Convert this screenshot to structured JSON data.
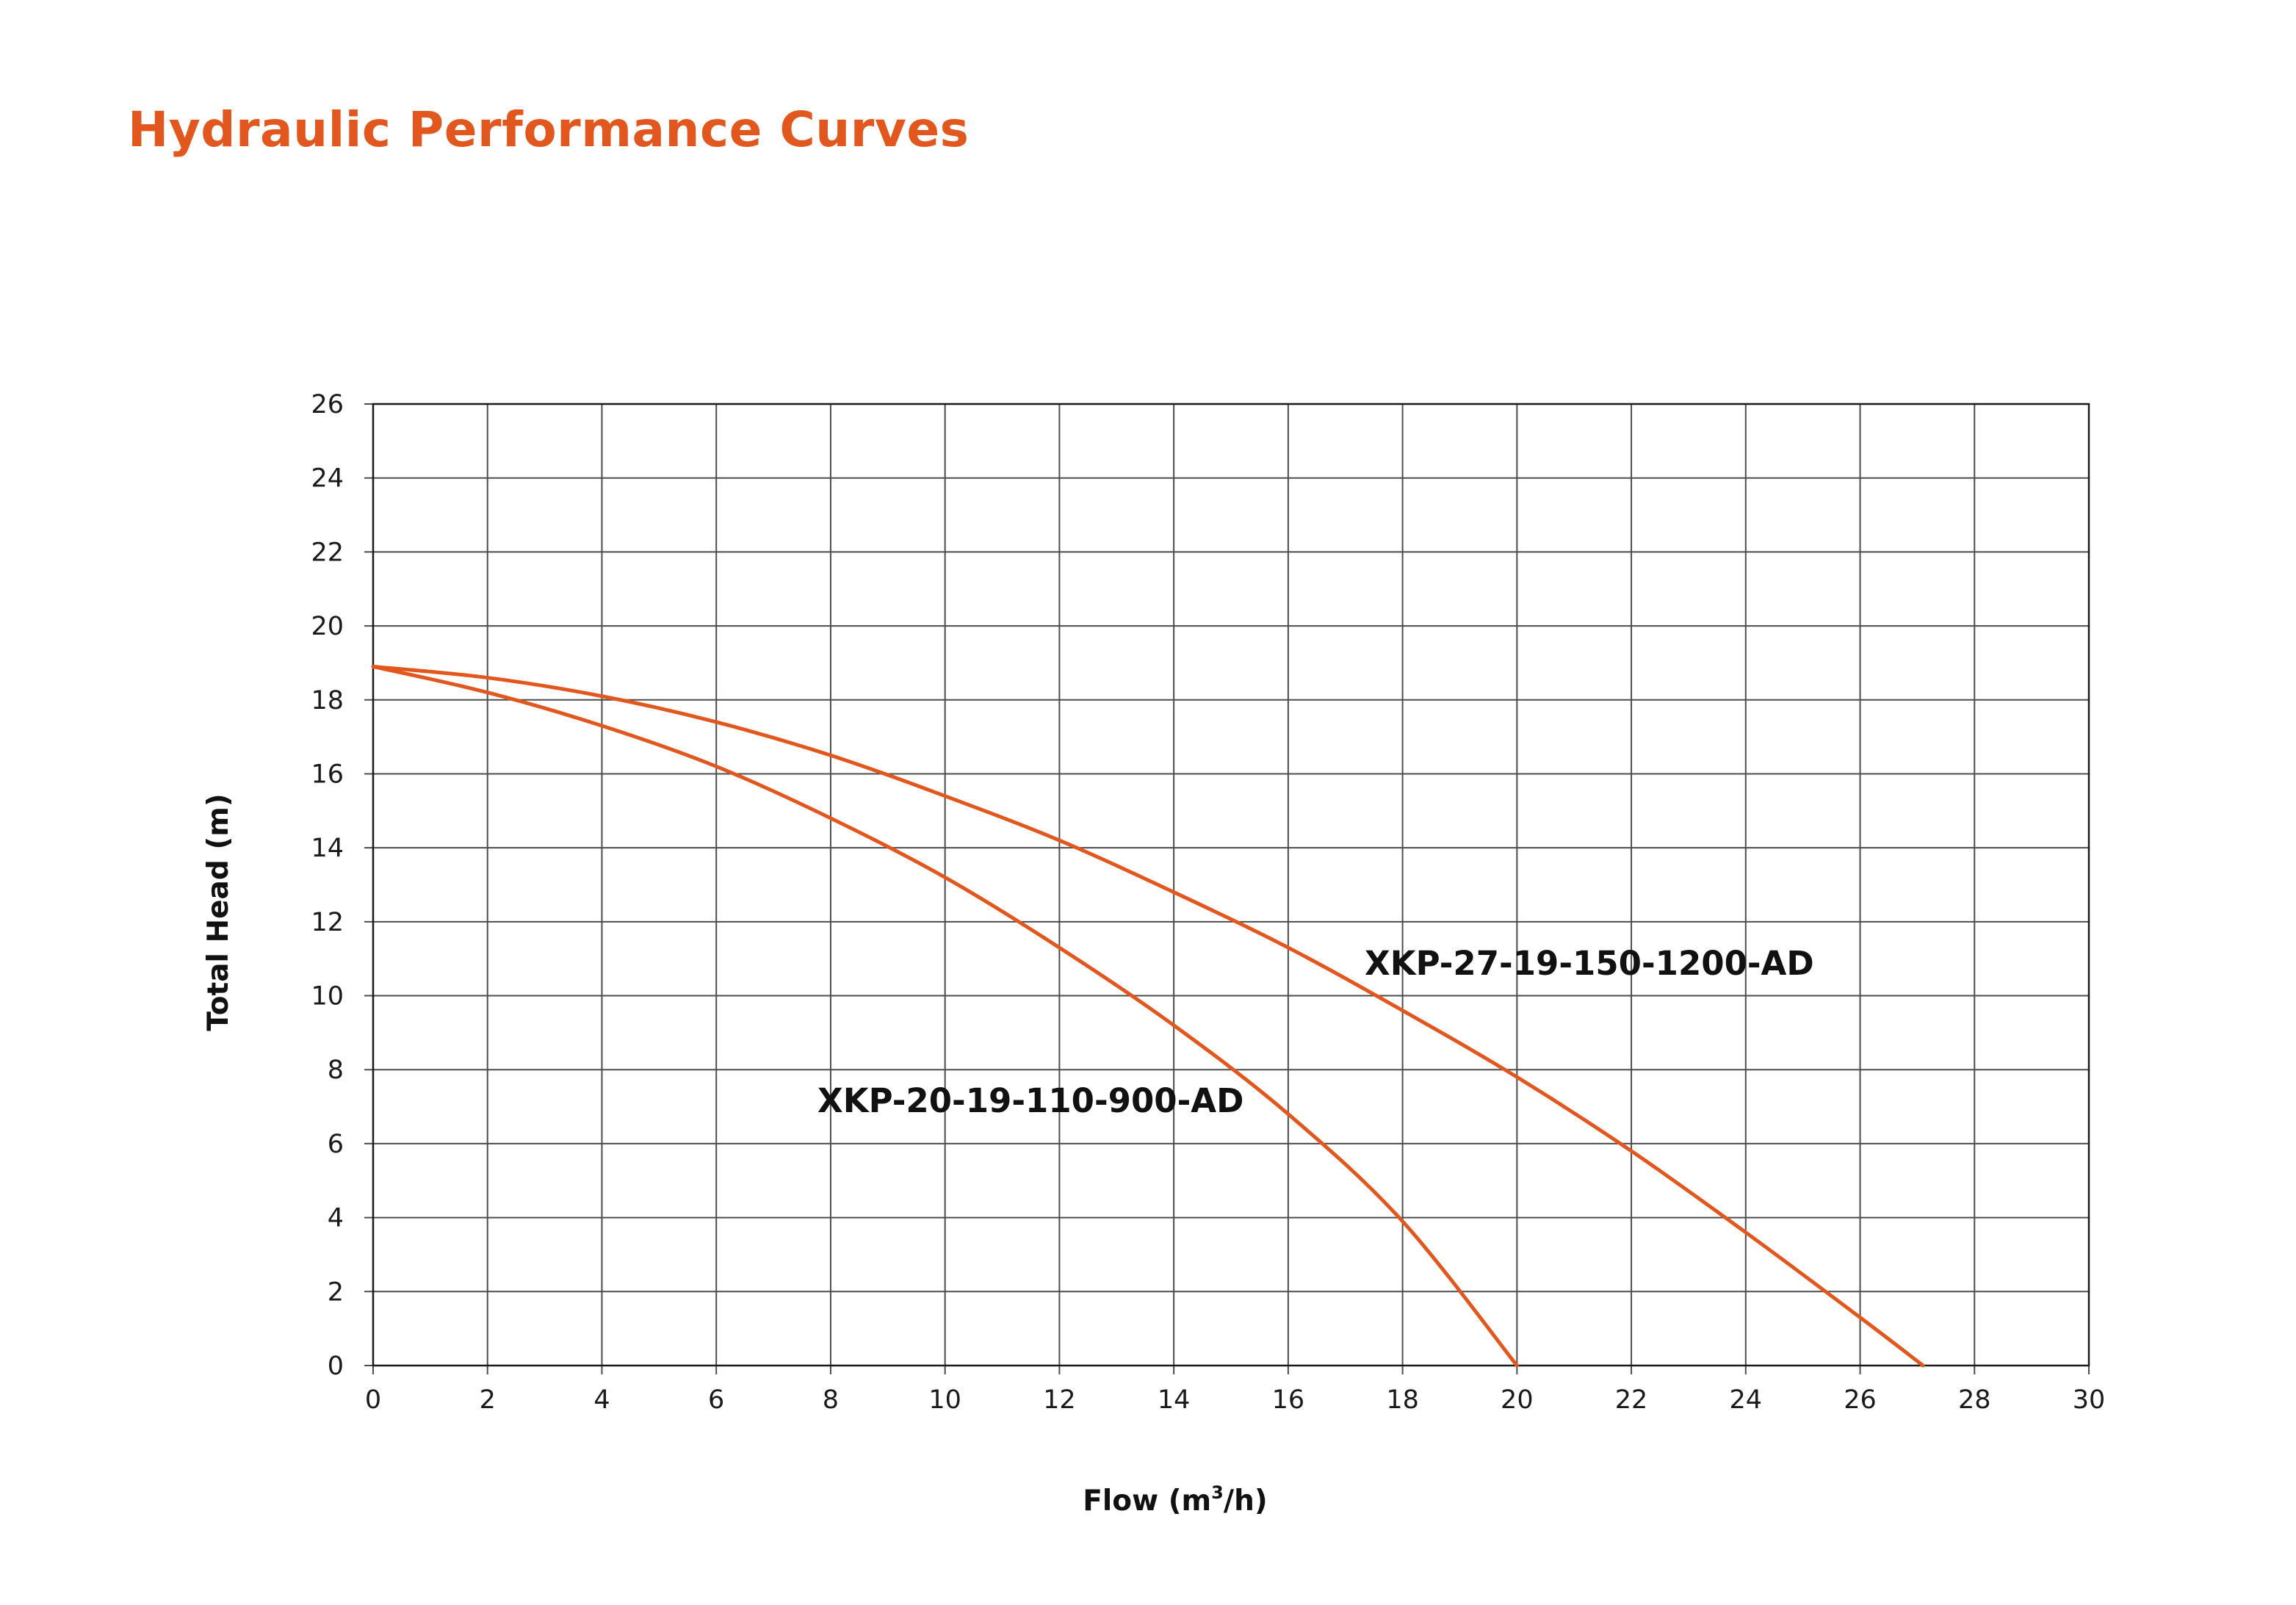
{
  "title": "Hydraulic Performance Curves",
  "colors": {
    "title": "#e2571e",
    "curve": "#e2571e",
    "grid": "#4d4d4d",
    "text": "#111111"
  },
  "chart_data": {
    "type": "line",
    "xlabel": "Flow (m",
    "xlabel_sup": "3",
    "xlabel_end": "/h)",
    "ylabel": "Total Head (m)",
    "xlim": [
      0,
      30
    ],
    "ylim": [
      0,
      26
    ],
    "x_ticks": [
      "0",
      "2",
      "4",
      "6",
      "8",
      "10",
      "12",
      "14",
      "16",
      "18",
      "20",
      "22",
      "24",
      "26",
      "28",
      "30"
    ],
    "y_ticks": [
      "0",
      "2",
      "4",
      "6",
      "8",
      "10",
      "12",
      "14",
      "16",
      "18",
      "20",
      "22",
      "24",
      "26"
    ],
    "grid": true,
    "series": [
      {
        "name": "XKP-20-19-110-900-AD",
        "x": [
          0,
          2,
          4,
          6,
          8,
          10,
          12,
          14,
          16,
          18,
          20
        ],
        "y": [
          18.9,
          18.2,
          17.3,
          16.2,
          14.8,
          13.2,
          11.3,
          9.2,
          6.8,
          3.9,
          0
        ]
      },
      {
        "name": "XKP-27-19-150-1200-AD",
        "x": [
          0,
          2,
          4,
          6,
          8,
          10,
          12,
          14,
          16,
          18,
          20,
          22,
          24,
          26,
          27.1
        ],
        "y": [
          18.9,
          18.6,
          18.1,
          17.4,
          16.5,
          15.4,
          14.2,
          12.8,
          11.3,
          9.6,
          7.8,
          5.8,
          3.6,
          1.3,
          0
        ]
      }
    ]
  }
}
